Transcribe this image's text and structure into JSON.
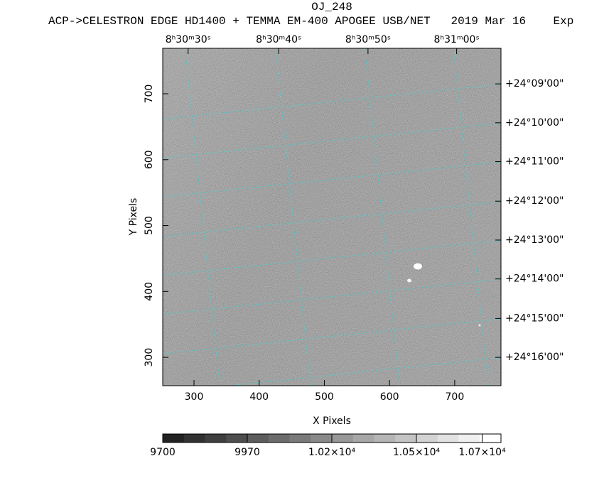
{
  "chart_data": {
    "type": "image",
    "title": "OJ_248",
    "subtitle": "ACP->CELESTRON EDGE HD1400 + TEMMA EM-400 APOGEE USB/NET   2019 Mar 16    Exp",
    "xlabel": "X Pixels",
    "ylabel": "Y Pixels",
    "xlim": [
      252,
      771
    ],
    "ylim": [
      257,
      769
    ],
    "xticks": [
      300,
      400,
      500,
      600,
      700
    ],
    "yticks": [
      300,
      400,
      500,
      600,
      700
    ],
    "top_ticks": [
      {
        "value": 291,
        "label": "8ʰ30ᵐ30ˢ"
      },
      {
        "value": 430,
        "label": "8ʰ30ᵐ40ˢ"
      },
      {
        "value": 567,
        "label": "8ʰ30ᵐ50ˢ"
      },
      {
        "value": 703,
        "label": "8ʰ31ᵐ00ˢ"
      }
    ],
    "right_ticks": [
      {
        "value": 715,
        "label": "+24°09'00\""
      },
      {
        "value": 656,
        "label": "+24°10'00\""
      },
      {
        "value": 597,
        "label": "+24°11'00\""
      },
      {
        "value": 537,
        "label": "+24°12'00\""
      },
      {
        "value": 478,
        "label": "+24°13'00\""
      },
      {
        "value": 419,
        "label": "+24°14'00\""
      },
      {
        "value": 359,
        "label": "+24°15'00\""
      },
      {
        "value": 300,
        "label": "+24°16'00\""
      }
    ],
    "grid": true,
    "grid_color": "#3fd0d0",
    "colorbar": {
      "lim": [
        9700,
        10780
      ],
      "ticks": [
        {
          "value": 9700,
          "label": "9700"
        },
        {
          "value": 9970,
          "label": "9970"
        },
        {
          "value": 10240,
          "label": "1.02×10⁴"
        },
        {
          "value": 10510,
          "label": "1.05×10⁴"
        },
        {
          "value": 10720,
          "label": "1.07×10⁴"
        }
      ]
    }
  }
}
